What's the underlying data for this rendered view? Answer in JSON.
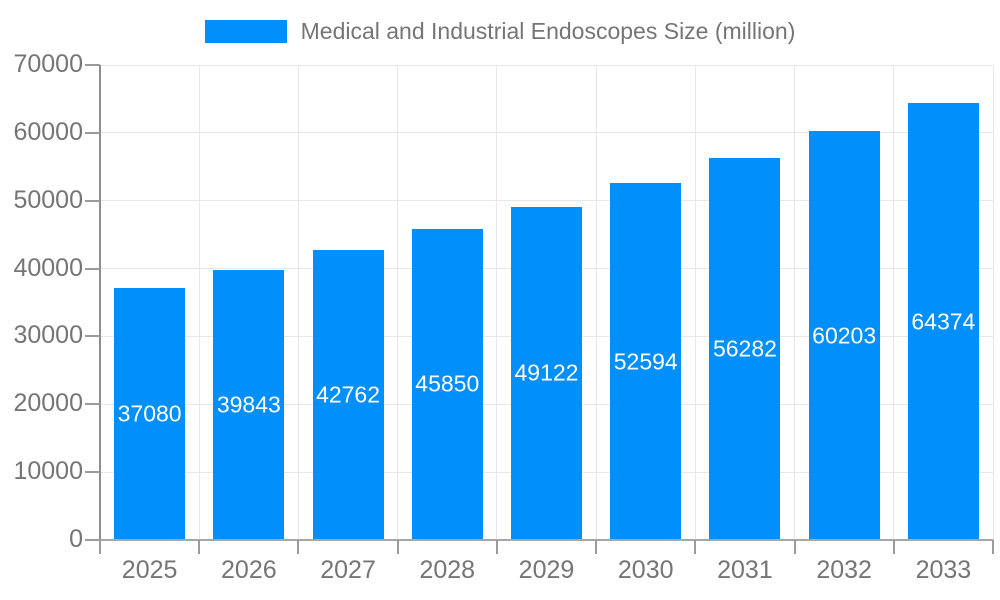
{
  "chart_data": {
    "type": "bar",
    "title": "Medical and Industrial Endoscopes Size (million)",
    "legend": [
      "Medical and Industrial Endoscopes Size (million)"
    ],
    "legend_position": "top",
    "categories": [
      "2025",
      "2026",
      "2027",
      "2028",
      "2029",
      "2030",
      "2031",
      "2032",
      "2033"
    ],
    "values": [
      37080,
      39843,
      42762,
      45850,
      49122,
      52594,
      56282,
      60203,
      64374
    ],
    "xlabel": "",
    "ylabel": "",
    "ylim": [
      0,
      70000
    ],
    "yticks": [
      0,
      10000,
      20000,
      30000,
      40000,
      50000,
      60000,
      70000
    ],
    "grid": true,
    "bar_value_labels_inside": true
  },
  "colors": {
    "bar": "#008FFB",
    "bar_label_text": "#ffffff",
    "axis_label_text": "#757575",
    "grid_line": "#e7e7e7",
    "axis_line": "#9b9b9b",
    "background": "#ffffff"
  }
}
